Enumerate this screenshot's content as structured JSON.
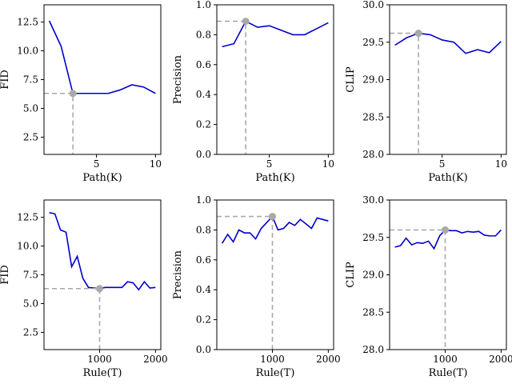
{
  "colors": {
    "series": "#0000cd",
    "highlight": "#a9a9a9",
    "axis": "#000000"
  },
  "chart_data": [
    {
      "type": "line",
      "xlabel": "Path(K)",
      "ylabel": "FID",
      "xlim": [
        0.55,
        10.45
      ],
      "ylim": [
        1,
        14
      ],
      "xticks": [
        5,
        10
      ],
      "xtick_labels": [
        "5",
        "10"
      ],
      "yticks": [
        2.5,
        5.0,
        7.5,
        10.0,
        12.5
      ],
      "ytick_labels": [
        "2.5",
        "5.0",
        "7.5",
        "10.0",
        "12.5"
      ],
      "x": [
        1,
        2,
        3,
        4,
        5,
        6,
        7,
        8,
        9,
        10
      ],
      "y": [
        12.6,
        10.4,
        6.3,
        6.3,
        6.3,
        6.3,
        6.6,
        7.05,
        6.85,
        6.3
      ],
      "highlight": {
        "x": 3,
        "y": 6.3
      },
      "grid": false,
      "legend": "none"
    },
    {
      "type": "line",
      "xlabel": "Path(K)",
      "ylabel": "Precision",
      "xlim": [
        0.55,
        10.45
      ],
      "ylim": [
        0,
        1
      ],
      "xticks": [
        5,
        10
      ],
      "xtick_labels": [
        "5",
        "10"
      ],
      "yticks": [
        0,
        0.2,
        0.4,
        0.6,
        0.8,
        1.0
      ],
      "ytick_labels": [
        "0.0",
        "0.2",
        "0.4",
        "0.6",
        "0.8",
        "1.0"
      ],
      "x": [
        1,
        2,
        3,
        4,
        5,
        6,
        7,
        8,
        9,
        10
      ],
      "y": [
        0.72,
        0.74,
        0.89,
        0.85,
        0.86,
        0.83,
        0.8,
        0.8,
        0.84,
        0.88
      ],
      "highlight": {
        "x": 3,
        "y": 0.89
      },
      "grid": false,
      "legend": "none"
    },
    {
      "type": "line",
      "xlabel": "Path(K)",
      "ylabel": "CLIP",
      "xlim": [
        0.55,
        10.45
      ],
      "ylim": [
        28.0,
        30.0
      ],
      "xticks": [
        5,
        10
      ],
      "xtick_labels": [
        "5",
        "10"
      ],
      "yticks": [
        28.0,
        28.5,
        29.0,
        29.5,
        30.0
      ],
      "ytick_labels": [
        "28.0",
        "28.5",
        "29.0",
        "29.5",
        "30.0"
      ],
      "x": [
        1,
        2,
        3,
        4,
        5,
        6,
        7,
        8,
        9,
        10
      ],
      "y": [
        29.46,
        29.56,
        29.62,
        29.6,
        29.53,
        29.5,
        29.35,
        29.4,
        29.36,
        29.51
      ],
      "highlight": {
        "x": 3,
        "y": 29.62
      },
      "grid": false,
      "legend": "none"
    },
    {
      "type": "line",
      "xlabel": "Rule(T)",
      "ylabel": "FID",
      "xlim": [
        5,
        2095
      ],
      "ylim": [
        1,
        14
      ],
      "xticks": [
        1000,
        2000
      ],
      "xtick_labels": [
        "1000",
        "2000"
      ],
      "yticks": [
        2.5,
        5.0,
        7.5,
        10.0,
        12.5
      ],
      "ytick_labels": [
        "2.5",
        "5.0",
        "7.5",
        "10.0",
        "12.5"
      ],
      "x": [
        100,
        200,
        300,
        400,
        500,
        600,
        700,
        800,
        900,
        1000,
        1100,
        1200,
        1300,
        1400,
        1500,
        1600,
        1700,
        1800,
        1900,
        2000
      ],
      "y": [
        12.9,
        12.8,
        11.4,
        11.2,
        8.2,
        9.1,
        7.2,
        6.4,
        6.35,
        6.3,
        6.4,
        6.4,
        6.4,
        6.4,
        6.9,
        6.8,
        6.2,
        6.9,
        6.35,
        6.4
      ],
      "highlight": {
        "x": 1000,
        "y": 6.3
      },
      "grid": false,
      "legend": "none"
    },
    {
      "type": "line",
      "xlabel": "Rule(T)",
      "ylabel": "Precision",
      "xlim": [
        5,
        2095
      ],
      "ylim": [
        0,
        1
      ],
      "xticks": [
        1000,
        2000
      ],
      "xtick_labels": [
        "1000",
        "2000"
      ],
      "yticks": [
        0,
        0.2,
        0.4,
        0.6,
        0.8,
        1.0
      ],
      "ytick_labels": [
        "0.0",
        "0.2",
        "0.4",
        "0.6",
        "0.8",
        "1.0"
      ],
      "x": [
        100,
        200,
        300,
        400,
        500,
        600,
        700,
        800,
        900,
        1000,
        1100,
        1200,
        1300,
        1400,
        1500,
        1600,
        1700,
        1800,
        1900,
        2000
      ],
      "y": [
        0.71,
        0.77,
        0.72,
        0.8,
        0.78,
        0.78,
        0.74,
        0.81,
        0.85,
        0.89,
        0.8,
        0.81,
        0.85,
        0.83,
        0.87,
        0.84,
        0.81,
        0.88,
        0.87,
        0.86
      ],
      "highlight": {
        "x": 1000,
        "y": 0.89
      },
      "grid": false,
      "legend": "none"
    },
    {
      "type": "line",
      "xlabel": "Rule(T)",
      "ylabel": "CLIP",
      "xlim": [
        5,
        2095
      ],
      "ylim": [
        28.0,
        30.0
      ],
      "xticks": [
        1000,
        2000
      ],
      "xtick_labels": [
        "1000",
        "2000"
      ],
      "yticks": [
        28.0,
        28.5,
        29.0,
        29.5,
        30.0
      ],
      "ytick_labels": [
        "28.0",
        "28.5",
        "29.0",
        "29.5",
        "30.0"
      ],
      "x": [
        100,
        200,
        300,
        400,
        500,
        600,
        700,
        800,
        900,
        1000,
        1100,
        1200,
        1300,
        1400,
        1500,
        1600,
        1700,
        1800,
        1900,
        2000
      ],
      "y": [
        29.37,
        29.39,
        29.49,
        29.4,
        29.43,
        29.42,
        29.45,
        29.35,
        29.52,
        29.6,
        29.59,
        29.59,
        29.56,
        29.58,
        29.57,
        29.58,
        29.53,
        29.52,
        29.52,
        29.6
      ],
      "highlight": {
        "x": 1000,
        "y": 29.6
      },
      "grid": false,
      "legend": "none"
    }
  ]
}
